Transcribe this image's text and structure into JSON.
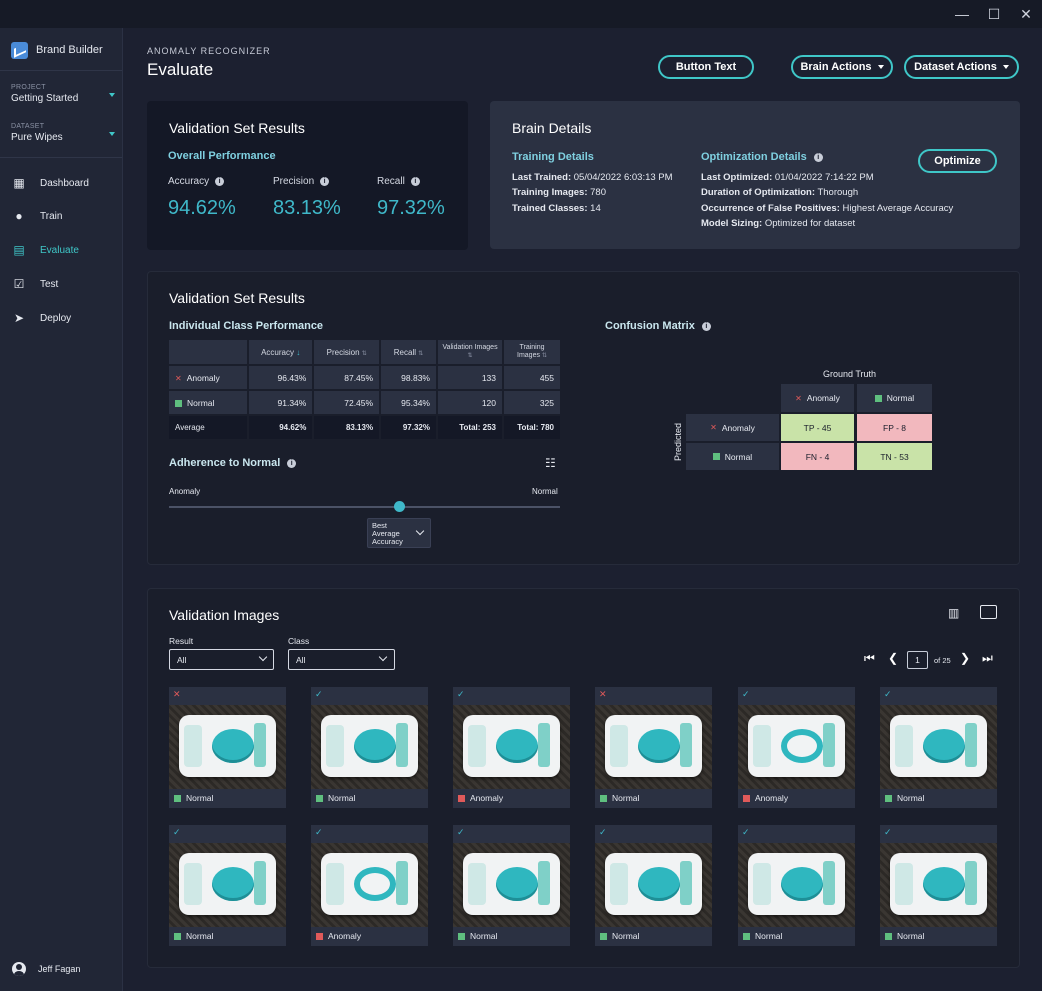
{
  "app": {
    "name": "Brand Builder"
  },
  "sidebar": {
    "project": {
      "label": "PROJECT",
      "value": "Getting Started"
    },
    "dataset": {
      "label": "DATASET",
      "value": "Pure Wipes"
    },
    "items": [
      {
        "label": "Dashboard",
        "icon": "grid-icon"
      },
      {
        "label": "Train",
        "icon": "lightbulb-icon"
      },
      {
        "label": "Evaluate",
        "icon": "clipboard-icon"
      },
      {
        "label": "Test",
        "icon": "clipboard-check-icon"
      },
      {
        "label": "Deploy",
        "icon": "send-icon"
      }
    ],
    "user": "Jeff Fagan"
  },
  "header": {
    "subtitle": "ANOMALY RECOGNIZER",
    "title": "Evaluate",
    "button_text": "Button Text",
    "brain_actions": "Brain Actions",
    "dataset_actions": "Dataset Actions"
  },
  "overall": {
    "title": "Validation Set Results",
    "subtitle": "Overall Performance",
    "accuracy_label": "Accuracy",
    "accuracy": "94.62%",
    "precision_label": "Precision",
    "precision": "83.13%",
    "recall_label": "Recall",
    "recall": "97.32%"
  },
  "brain": {
    "title": "Brain Details",
    "training_title": "Training Details",
    "last_trained_k": "Last Trained:",
    "last_trained_v": "05/04/2022 6:03:13 PM",
    "training_images_k": "Training Images:",
    "training_images_v": "780",
    "trained_classes_k": "Trained Classes:",
    "trained_classes_v": "14",
    "optimization_title": "Optimization Details",
    "optimize_button": "Optimize",
    "last_optimized_k": "Last Optimized:",
    "last_optimized_v": "01/04/2022 7:14:22 PM",
    "duration_k": "Duration of Optimization:",
    "duration_v": "Thorough",
    "false_pos_k": "Occurrence of False Positives:",
    "false_pos_v": "Highest Average Accuracy",
    "sizing_k": "Model Sizing:",
    "sizing_v": "Optimized for dataset"
  },
  "class_perf": {
    "title": "Validation Set Results",
    "subtitle": "Individual Class Performance",
    "headers": [
      "",
      "Accuracy",
      "Precision",
      "Recall",
      "Validation Images",
      "Training Images"
    ],
    "rows": [
      {
        "name": "Anomaly",
        "accuracy": "96.43%",
        "precision": "87.45%",
        "recall": "98.83%",
        "val": "133",
        "train": "455"
      },
      {
        "name": "Normal",
        "accuracy": "91.34%",
        "precision": "72.45%",
        "recall": "95.34%",
        "val": "120",
        "train": "325"
      }
    ],
    "avg": {
      "name": "Average",
      "accuracy": "94.62%",
      "precision": "83.13%",
      "recall": "97.32%",
      "val": "Total: 253",
      "train": "Total: 780"
    }
  },
  "adherence": {
    "title": "Adherence to Normal",
    "left": "Anomaly",
    "right": "Normal",
    "value": 0.59,
    "dropdown": "Best Average Accuracy"
  },
  "confusion": {
    "title": "Confusion Matrix",
    "ground_truth": "Ground Truth",
    "predicted": "Predicted",
    "col_anomaly": "Anomaly",
    "col_normal": "Normal",
    "row_anomaly": "Anomaly",
    "row_normal": "Normal",
    "tp": "TP - 45",
    "fp": "FP - 8",
    "fn": "FN - 4",
    "tn": "TN - 53"
  },
  "images": {
    "title": "Validation Images",
    "result_label": "Result",
    "result_value": "All",
    "class_label": "Class",
    "class_value": "All",
    "page": "1",
    "page_of": "of 25",
    "items": [
      {
        "mark": "✕",
        "label": "Normal"
      },
      {
        "mark": "✓",
        "label": "Normal"
      },
      {
        "mark": "✓",
        "label": "Anomaly"
      },
      {
        "mark": "✕",
        "label": "Normal"
      },
      {
        "mark": "✓",
        "label": "Anomaly"
      },
      {
        "mark": "✓",
        "label": "Normal"
      },
      {
        "mark": "✓",
        "label": "Normal"
      },
      {
        "mark": "✓",
        "label": "Anomaly"
      },
      {
        "mark": "✓",
        "label": "Normal"
      },
      {
        "mark": "✓",
        "label": "Normal"
      },
      {
        "mark": "✓",
        "label": "Normal"
      },
      {
        "mark": "✓",
        "label": "Normal"
      }
    ]
  },
  "colors": {
    "accent": "#3fc7c8",
    "normal": "#5fbf7f",
    "anomaly": "#e05a5a",
    "tp": "#c9e3a8",
    "fp": "#f2b8be"
  }
}
